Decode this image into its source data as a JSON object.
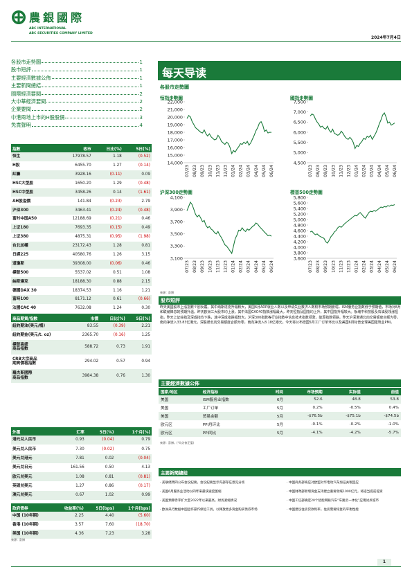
{
  "header": {
    "logo_cn": "農銀國際",
    "logo_en_1": "ABC INTERNATIONAL",
    "logo_en_2": "ABC SECURITIES COMPANY LIMITED",
    "date": "2024年7月4日"
  },
  "toc": [
    {
      "label": "各股市走勢圖",
      "page": "1"
    },
    {
      "label": "股市短評",
      "page": "1"
    },
    {
      "label": "主要經濟數據公佈",
      "page": "1"
    },
    {
      "label": "主要新聞總結",
      "page": "1"
    },
    {
      "label": "國際經濟要聞",
      "page": "2"
    },
    {
      "label": "大中華經濟要聞",
      "page": "2"
    },
    {
      "label": "企業要聞",
      "page": "2"
    },
    {
      "label": "中港兩地上市的H股股價",
      "page": "3"
    },
    {
      "label": "免責聲明",
      "page": "4"
    }
  ],
  "title": "每天导读",
  "chart_section_label": "各股市走勢圖",
  "charts": {
    "hsi": {
      "title": "恒指走勢圖",
      "yticks": [
        "22,000",
        "21,000",
        "20,000",
        "19,000",
        "18,000",
        "17,000",
        "16,000",
        "15,000",
        "14,000"
      ],
      "xticks": [
        "07/23",
        "08/23",
        "09/23",
        "10/23",
        "11/23",
        "12/23",
        "01/24",
        "02/24",
        "03/24",
        "04/24",
        "05/24",
        "06/24"
      ],
      "ylim": [
        14000,
        22000
      ],
      "values": [
        19800,
        20200,
        20000,
        19400,
        19000,
        18600,
        18400,
        18200,
        18000,
        17900,
        18300,
        17800,
        17500,
        17800,
        17400,
        17200,
        17000,
        17100,
        17600,
        17300,
        16800,
        16600,
        16400,
        16700,
        16500,
        16000,
        15200,
        15600,
        15400,
        15800,
        16100,
        16500,
        16400,
        16700,
        16500,
        16800,
        16300,
        16600,
        17100,
        17600,
        18200,
        18600,
        19200,
        19400,
        18900,
        18100,
        18300,
        17900,
        18000,
        17978
      ]
    },
    "hscei": {
      "title": "國指走勢圖",
      "yticks": [
        "7,500",
        "7,000",
        "6,500",
        "6,000",
        "5,500",
        "5,000",
        "4,500"
      ],
      "xticks": [
        "07/23",
        "08/23",
        "09/23",
        "10/23",
        "11/23",
        "12/23",
        "01/24",
        "02/24",
        "03/24",
        "04/24",
        "05/24",
        "06/24"
      ],
      "ylim": [
        4500,
        7500
      ],
      "values": [
        6800,
        6900,
        6850,
        6650,
        6500,
        6400,
        6250,
        6300,
        6200,
        6150,
        6300,
        6100,
        6000,
        6150,
        5950,
        5900,
        5850,
        5900,
        6050,
        5950,
        5800,
        5700,
        5650,
        5750,
        5650,
        5500,
        5200,
        5350,
        5300,
        5450,
        5550,
        5700,
        5650,
        5800,
        5750,
        5850,
        5650,
        5800,
        5950,
        6150,
        6400,
        6600,
        6850,
        6950,
        6750,
        6450,
        6500,
        6350,
        6400,
        6456
      ]
    },
    "csi300": {
      "title": "沪深300走勢圖",
      "yticks": [
        "4,100",
        "3,900",
        "3,700",
        "3,500",
        "3,300",
        "3,100"
      ],
      "xticks": [
        "07/23",
        "08/23",
        "09/23",
        "10/23",
        "11/23",
        "12/23",
        "01/24",
        "02/24",
        "03/24",
        "04/24",
        "05/24",
        "06/24"
      ],
      "ylim": [
        3100,
        4100
      ],
      "values": [
        3880,
        3950,
        4020,
        3980,
        3900,
        3820,
        3780,
        3810,
        3760,
        3700,
        3720,
        3640,
        3600,
        3620,
        3580,
        3560,
        3520,
        3500,
        3540,
        3480,
        3440,
        3380,
        3320,
        3300,
        3260,
        3220,
        3180,
        3300,
        3420,
        3480,
        3560,
        3550,
        3600,
        3560,
        3540,
        3580,
        3560,
        3590,
        3620,
        3640,
        3680,
        3660,
        3620,
        3590,
        3560,
        3530,
        3500,
        3470,
        3480,
        3463
      ]
    },
    "spx": {
      "title": "標普500走勢圖",
      "yticks": [
        "5,800",
        "5,600",
        "5,400",
        "5,200",
        "5,000",
        "4,800",
        "4,600",
        "4,400",
        "4,200",
        "4,000",
        "3,800",
        "3,600"
      ],
      "xticks": [
        "07/23",
        "08/23",
        "09/23",
        "10/23",
        "11/23",
        "12/23",
        "01/24",
        "02/24",
        "03/24",
        "04/24",
        "05/24",
        "06/24"
      ],
      "ylim": [
        3600,
        5800
      ],
      "values": [
        4550,
        4580,
        4500,
        4450,
        4480,
        4420,
        4380,
        4350,
        4320,
        4200,
        4150,
        4250,
        4380,
        4450,
        4550,
        4600,
        4700,
        4750,
        4720,
        4780,
        4850,
        4900,
        4950,
        5000,
        5050,
        5100,
        5150,
        5130,
        5200,
        5250,
        5180,
        5100,
        5050,
        5150,
        5250,
        5300,
        5280,
        5320,
        5300,
        5350,
        5400,
        5450,
        5430,
        5470,
        5450,
        5500,
        5480,
        5520,
        5510,
        5537
      ]
    },
    "source": "來源：彭博"
  },
  "index_table": {
    "headers": [
      "指數",
      "收市",
      "日比(%)",
      "5日(%)"
    ],
    "rows": [
      [
        "恒生",
        "17978.57",
        "1.18",
        "(0.52)"
      ],
      [
        "H股",
        "6455.70",
        "1.27",
        "(0.14)"
      ],
      [
        "紅籌",
        "3928.16",
        "(0.11)",
        "0.09"
      ],
      [
        "HSC大型股",
        "1650.20",
        "1.29",
        "(0.48)"
      ],
      [
        "HSC中型股",
        "3458.26",
        "0.14",
        "(1.61)"
      ],
      [
        "AH股溢價",
        "141.84",
        "(0.23)",
        "2.79"
      ],
      [
        "沪深300",
        "3463.41",
        "(0.24)",
        "(0.48)"
      ],
      [
        "富时中国A50",
        "12188.69",
        "(0.21)",
        "0.46"
      ],
      [
        "上证180",
        "7693.35",
        "(0.15)",
        "0.49"
      ],
      [
        "上证380",
        "4875.31",
        "(0.95)",
        "(1.98)"
      ],
      [
        "台北加權",
        "23172.43",
        "1.28",
        "0.81"
      ],
      [
        "日經225",
        "40580.76",
        "1.26",
        "3.15"
      ],
      [
        "道瓊斯",
        "39308.00",
        "(0.06)",
        "0.46"
      ],
      [
        "標普500",
        "5537.02",
        "0.51",
        "1.08"
      ],
      [
        "納斯達克",
        "18188.30",
        "0.88",
        "2.15"
      ],
      [
        "德國DAX 30",
        "18374.53",
        "1.16",
        "1.21"
      ],
      [
        "富時100",
        "8171.12",
        "0.61",
        "(0.66)"
      ],
      [
        "法國CAC 40",
        "7632.08",
        "1.24",
        "0.30"
      ]
    ]
  },
  "commodity_table": {
    "headers": [
      "商品期貨/指數",
      "市價",
      "日比(%)",
      "5日(%)"
    ],
    "rows": [
      [
        "紐約期油(美元/桶)",
        "83.55",
        "(0.39)",
        "2.21"
      ],
      [
        "紐約期金(美元/t. oz)",
        "2365.70",
        "(0.16)",
        "1.25"
      ],
      [
        "標普高盛\n商品指數",
        "588.72",
        "0.73",
        "1.91"
      ],
      [
        "CRB大宗商品\n期貨價格指數",
        "294.02",
        "0.57",
        "0.94"
      ],
      [
        "羅杰斯國際\n商品指數",
        "3984.38",
        "0.76",
        "1.30"
      ]
    ]
  },
  "fx_table": {
    "headers": [
      "外匯",
      "汇率",
      "5日(%)",
      "1个月(%)"
    ],
    "rows": [
      [
        "港元兑人民币",
        "0.93",
        "(0.04)",
        "0.79"
      ],
      [
        "美元兑人民币",
        "7.30",
        "(0.02)",
        "0.75"
      ],
      [
        "美元兑港元",
        "7.81",
        "0.02",
        "(0.04)"
      ],
      [
        "美元兑日元",
        "161.56",
        "0.50",
        "4.13"
      ],
      [
        "欧元兑美元",
        "1.08",
        "0.81",
        "(0.81)"
      ],
      [
        "英磅兑美元",
        "1.27",
        "0.86",
        "(0.17)"
      ],
      [
        "澳元兑美元",
        "0.67",
        "1.02",
        "0.99"
      ]
    ]
  },
  "bond_table": {
    "headers": [
      "政府债券",
      "收益率(%)",
      "5日(bps)",
      "1个月(bps)"
    ],
    "rows": [
      [
        "中国 (10年期)",
        "2.25",
        "4.40",
        "(5.60)"
      ],
      [
        "香港 (10年期)",
        "3.57",
        "7.60",
        "(18.70)"
      ],
      [
        "美国 (10年期)",
        "4.36",
        "7.23",
        "3.28"
      ]
    ],
    "source": "來源：彭博"
  },
  "comment": {
    "title": "股市短評",
    "text": "昨天美國股市上漲指數个别反覆。其中纳斯達克升幅較大，美国6月ADP就业人数以及申请失业救济人数较市场预期疲弱，ISM服务业指数低于预期值，市场对8月和联储降息的预期升温。昨天欧洲三大股市均上涨，其中法国CAC40指数涨幅最大，昨天恒指及国指均上升，其中国指升幅较大。板塊中科技股及石油股领涨恒指，昨天上证综指及深成指均下跌，其中深成指跌幅较大。沪深300指数各行业指数中信息技术指数领涨，能源指数领跌，昨天沪深港通北向交易额度合额为零，南向净流入33.83亿港元，深股通北向交易额度合额为零，南向净流入8.18亿港元。今天将公布德国5月工厂订单环比以及美国6月标普全球美国建筑业PMI。"
  },
  "econ": {
    "title": "主要經濟數據公佈",
    "headers": [
      "国家/地区",
      "经济指标",
      "时间",
      "市场预期",
      "实际值",
      "前值"
    ],
    "rows": [
      [
        "美国",
        "ISM服务业指数",
        "6月",
        "52.6",
        "48.8",
        "53.8"
      ],
      [
        "美国",
        "工厂订单",
        "5月",
        "0.2%",
        "-0.5%",
        "0.4%"
      ],
      [
        "美国",
        "贸易余额",
        "5月",
        "-$76.5b",
        "-$75.1b",
        "-$74.5b"
      ],
      [
        "欧元区",
        "PPI月环比",
        "5月",
        "-0.1%",
        "-0.2%",
        "-1.0%"
      ],
      [
        "欧元区",
        "PPI同比",
        "5月",
        "-4.1%",
        "-4.2%",
        "-5.7%"
      ]
    ],
    "source": "來源：彭博，(*均为修正值)"
  },
  "news": {
    "title": "主要新聞總結",
    "left": [
      "· 美联储周四公布会议纪要，会议纪要显示内部存在意见分歧",
      "· 美国6月服务业活动以四年来最快速度萎缩",
      "· 美国预算赤字扩大至2022年以来最高，财务紧缩情况",
      "· 欧洲央行数据中国运作操作保险工具，以释放更多资金购买债券市场"
    ],
    "right": [
      "· 中国商务部将应对欧盟对华电动汽车加征关税回应",
      "· 中国财政部新增资金支持建立重要领域1000亿元，将适当提前提资",
      "· 中国工信部确定20个智能网联汽车“车路云一体化”应用试点城市",
      "· 中国建议住房贷款利率，住房需要恢复的平衡性能"
    ]
  },
  "page_number": "1"
}
